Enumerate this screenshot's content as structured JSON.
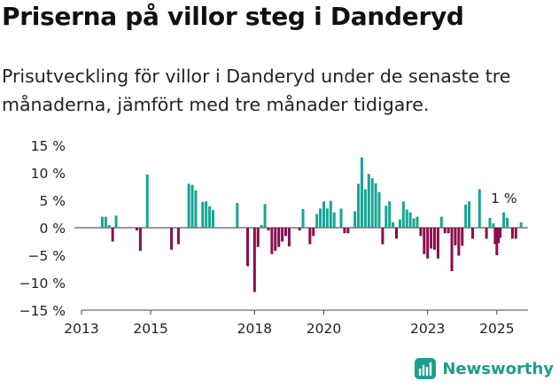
{
  "title": "Priserna på villor steg i Danderyd",
  "subtitle": "Prisutveckling för villor i Danderyd under de senaste tre månaderna, jämfört med tre månader tidigare.",
  "brand": {
    "name": "Newsworthy"
  },
  "colors": {
    "positive": "#17a594",
    "negative": "#8a0d4d",
    "axis": "#444444",
    "text": "#222222",
    "brand": "#1aa08e"
  },
  "chart_data": {
    "type": "bar",
    "ylim": [
      -15,
      15
    ],
    "yticks": [
      15,
      10,
      5,
      0,
      -5,
      -10,
      -15
    ],
    "ytick_labels": [
      "15 %",
      "10 %",
      "5 %",
      "0 %",
      "−5 %",
      "−10 %",
      "−15 %"
    ],
    "xlim": [
      2013,
      2025.9
    ],
    "xticks": [
      2013,
      2015,
      2018,
      2020,
      2023,
      2025
    ],
    "xtick_labels": [
      "2013",
      "2015",
      "2018",
      "2020",
      "2023",
      "2025"
    ],
    "annotation": {
      "text": "1 %",
      "x": 2025.0,
      "y": 1
    },
    "series": [
      {
        "points": [
          [
            2013.6,
            2
          ],
          [
            2013.7,
            2
          ],
          [
            2013.8,
            0.5
          ],
          [
            2013.9,
            -2.5
          ],
          [
            2014.0,
            2.2
          ],
          [
            2014.6,
            -0.5
          ],
          [
            2014.7,
            -4.2
          ],
          [
            2014.9,
            9.7
          ],
          [
            2015.6,
            -4
          ],
          [
            2015.8,
            -3
          ],
          [
            2016.1,
            8
          ],
          [
            2016.2,
            7.8
          ],
          [
            2016.3,
            6.8
          ],
          [
            2016.5,
            4.7
          ],
          [
            2016.6,
            4.8
          ],
          [
            2016.7,
            3.9
          ],
          [
            2016.8,
            3.2
          ],
          [
            2017.5,
            4.5
          ],
          [
            2017.8,
            -7
          ],
          [
            2018.0,
            -11.7
          ],
          [
            2018.1,
            -3.5
          ],
          [
            2018.2,
            0.5
          ],
          [
            2018.3,
            4.3
          ],
          [
            2018.4,
            -0.5
          ],
          [
            2018.5,
            -4.8
          ],
          [
            2018.6,
            -4.2
          ],
          [
            2018.7,
            -3.5
          ],
          [
            2018.8,
            -2.5
          ],
          [
            2018.9,
            -1.5
          ],
          [
            2019.0,
            -3.4
          ],
          [
            2019.3,
            -0.5
          ],
          [
            2019.4,
            3.4
          ],
          [
            2019.6,
            -3
          ],
          [
            2019.7,
            -1.5
          ],
          [
            2019.8,
            2.5
          ],
          [
            2019.9,
            3.5
          ],
          [
            2020.0,
            4.8
          ],
          [
            2020.1,
            3.5
          ],
          [
            2020.2,
            4.9
          ],
          [
            2020.3,
            2.8
          ],
          [
            2020.5,
            3.5
          ],
          [
            2020.6,
            -1
          ],
          [
            2020.7,
            -1
          ],
          [
            2020.9,
            3
          ],
          [
            2021.0,
            8
          ],
          [
            2021.1,
            12.8
          ],
          [
            2021.2,
            7
          ],
          [
            2021.3,
            9.8
          ],
          [
            2021.4,
            9
          ],
          [
            2021.5,
            8.1
          ],
          [
            2021.6,
            6.5
          ],
          [
            2021.7,
            -3
          ],
          [
            2021.8,
            4
          ],
          [
            2021.9,
            4.8
          ],
          [
            2022.0,
            1
          ],
          [
            2022.1,
            -2
          ],
          [
            2022.2,
            1.5
          ],
          [
            2022.3,
            4.8
          ],
          [
            2022.4,
            3.3
          ],
          [
            2022.5,
            2.8
          ],
          [
            2022.6,
            1.7
          ],
          [
            2022.7,
            2
          ],
          [
            2022.8,
            -1.5
          ],
          [
            2022.9,
            -4.8
          ],
          [
            2023.0,
            -5.6
          ],
          [
            2023.1,
            -3.8
          ],
          [
            2023.2,
            -4
          ],
          [
            2023.3,
            -5.6
          ],
          [
            2023.4,
            2
          ],
          [
            2023.5,
            -1
          ],
          [
            2023.6,
            -1
          ],
          [
            2023.7,
            -7.9
          ],
          [
            2023.8,
            -3.2
          ],
          [
            2023.9,
            -5.1
          ],
          [
            2024.0,
            -3.3
          ],
          [
            2024.1,
            4.2
          ],
          [
            2024.2,
            4.8
          ],
          [
            2024.3,
            -2
          ],
          [
            2024.5,
            7
          ],
          [
            2024.7,
            -2
          ],
          [
            2024.8,
            1.8
          ],
          [
            2024.9,
            0.8
          ],
          [
            2024.95,
            -3
          ],
          [
            2025.0,
            -5
          ],
          [
            2025.05,
            -2.8
          ],
          [
            2025.1,
            -1.8
          ],
          [
            2025.2,
            2.8
          ],
          [
            2025.3,
            1.8
          ],
          [
            2025.45,
            -2
          ],
          [
            2025.55,
            -2
          ],
          [
            2025.7,
            1
          ]
        ]
      }
    ]
  }
}
